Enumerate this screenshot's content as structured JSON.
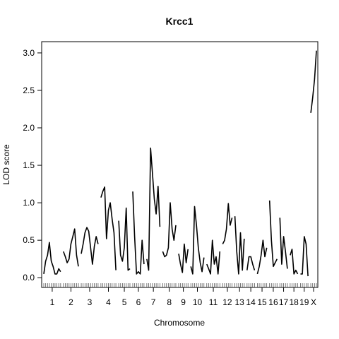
{
  "chart_data": {
    "type": "line",
    "title": "Krcc1",
    "xlabel": "Chromosome",
    "ylabel": "LOD score",
    "ylim": [
      -0.13,
      3.15
    ],
    "y_ticks": [
      0.0,
      0.5,
      1.0,
      1.5,
      2.0,
      2.5,
      3.0
    ],
    "y_tick_labels": [
      "0.0",
      "0.5",
      "1.0",
      "1.5",
      "2.0",
      "2.5",
      "3.0"
    ],
    "grid": false,
    "chromosomes": [
      {
        "label": "1",
        "values": [
          0.05,
          0.22,
          0.3,
          0.47,
          0.22,
          0.15,
          0.05,
          0.05,
          0.12,
          0.08
        ]
      },
      {
        "label": "2",
        "values": [
          0.35,
          0.28,
          0.2,
          0.25,
          0.45,
          0.55,
          0.65,
          0.3,
          0.15
        ]
      },
      {
        "label": "3",
        "values": [
          0.32,
          0.45,
          0.6,
          0.67,
          0.62,
          0.4,
          0.18,
          0.42,
          0.55,
          0.45
        ]
      },
      {
        "label": "4",
        "values": [
          1.07,
          1.15,
          1.21,
          0.52,
          0.9,
          1.0,
          0.78,
          0.6,
          0.1
        ]
      },
      {
        "label": "5",
        "values": [
          0.76,
          0.3,
          0.22,
          0.4,
          0.93,
          0.1,
          0.12
        ]
      },
      {
        "label": "6",
        "values": [
          1.15,
          0.55,
          0.05,
          0.08,
          0.05,
          0.5,
          0.18
        ]
      },
      {
        "label": "7",
        "values": [
          0.25,
          0.1,
          1.73,
          1.4,
          1.05,
          0.85,
          1.22,
          0.68
        ]
      },
      {
        "label": "8",
        "values": [
          0.35,
          0.28,
          0.3,
          0.4,
          1.0,
          0.65,
          0.5,
          0.7
        ]
      },
      {
        "label": "9",
        "values": [
          0.32,
          0.18,
          0.07,
          0.45,
          0.2,
          0.38
        ]
      },
      {
        "label": "10",
        "values": [
          0.15,
          0.05,
          0.95,
          0.7,
          0.4,
          0.2,
          0.08,
          0.27
        ]
      },
      {
        "label": "11",
        "values": [
          0.18,
          0.12,
          0.05,
          0.5,
          0.18,
          0.28,
          0.05,
          0.35
        ]
      },
      {
        "label": "12",
        "values": [
          0.45,
          0.5,
          0.65,
          0.99,
          0.7,
          0.8
        ]
      },
      {
        "label": "13",
        "values": [
          0.82,
          0.35,
          0.05,
          0.6,
          0.1,
          0.52
        ]
      },
      {
        "label": "14",
        "values": [
          0.1,
          0.28,
          0.28,
          0.18,
          0.1
        ]
      },
      {
        "label": "15",
        "values": [
          0.05,
          0.15,
          0.3,
          0.5,
          0.28,
          0.4
        ]
      },
      {
        "label": "16",
        "values": [
          1.03,
          0.5,
          0.15,
          0.2,
          0.25
        ]
      },
      {
        "label": "17",
        "values": [
          0.8,
          0.18,
          0.55,
          0.35,
          0.12
        ]
      },
      {
        "label": "18",
        "values": [
          0.3,
          0.38,
          0.05,
          0.1,
          0.05
        ]
      },
      {
        "label": "19",
        "values": [
          0.05,
          0.05,
          0.55,
          0.45,
          0.02
        ]
      },
      {
        "label": "X",
        "values": [
          2.2,
          2.4,
          2.65,
          3.03
        ]
      }
    ]
  }
}
